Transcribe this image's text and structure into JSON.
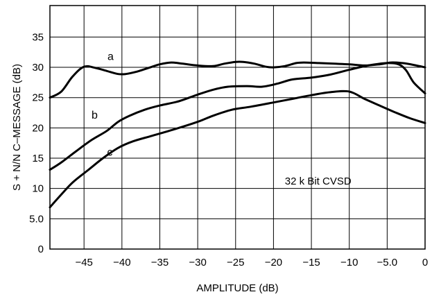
{
  "chart_data": {
    "type": "line",
    "title": "",
    "xlabel": "AMPLITUDE (dB)",
    "ylabel": "S + N/N C–MESSAGE (dB)",
    "xlim": [
      -49.5,
      0
    ],
    "ylim": [
      0,
      40
    ],
    "grid": true,
    "x_ticks": [
      {
        "value": -45,
        "label": "−45"
      },
      {
        "value": -40,
        "label": "−40"
      },
      {
        "value": -35,
        "label": "−35"
      },
      {
        "value": -30,
        "label": "−30"
      },
      {
        "value": -25,
        "label": "−25"
      },
      {
        "value": -20,
        "label": "−20"
      },
      {
        "value": -15,
        "label": "−15"
      },
      {
        "value": -10,
        "label": "−10"
      },
      {
        "value": -5,
        "label": "−5.0"
      },
      {
        "value": 0,
        "label": "0"
      }
    ],
    "y_ticks": [
      {
        "value": 0,
        "label": "0"
      },
      {
        "value": 5,
        "label": "5.0"
      },
      {
        "value": 10,
        "label": "10"
      },
      {
        "value": 15,
        "label": "15"
      },
      {
        "value": 20,
        "label": "20"
      },
      {
        "value": 25,
        "label": "25"
      },
      {
        "value": 30,
        "label": "30"
      },
      {
        "value": 35,
        "label": "35"
      }
    ],
    "annotation": {
      "text": "32 k Bit CVSD",
      "x": -18.5,
      "y": 11.2
    },
    "series": [
      {
        "name": "a",
        "label_at": {
          "x": -41.5,
          "y": 31.9
        },
        "points": [
          [
            -49.5,
            25.0
          ],
          [
            -48,
            26.0
          ],
          [
            -46.5,
            28.5
          ],
          [
            -45,
            30.1
          ],
          [
            -43.5,
            29.9
          ],
          [
            -42,
            29.4
          ],
          [
            -40.5,
            28.9
          ],
          [
            -39.5,
            28.9
          ],
          [
            -38,
            29.3
          ],
          [
            -36.5,
            29.9
          ],
          [
            -35,
            30.5
          ],
          [
            -33.5,
            30.8
          ],
          [
            -32,
            30.6
          ],
          [
            -30,
            30.3
          ],
          [
            -28,
            30.2
          ],
          [
            -26.5,
            30.6
          ],
          [
            -25,
            30.9
          ],
          [
            -24,
            30.9
          ],
          [
            -22.5,
            30.6
          ],
          [
            -21,
            30.1
          ],
          [
            -20,
            30.0
          ],
          [
            -18.5,
            30.2
          ],
          [
            -17,
            30.7
          ],
          [
            -16,
            30.8
          ],
          [
            -14,
            30.7
          ],
          [
            -12,
            30.6
          ],
          [
            -10,
            30.5
          ],
          [
            -8,
            30.3
          ],
          [
            -6,
            30.5
          ],
          [
            -4.5,
            30.8
          ],
          [
            -3,
            30.7
          ],
          [
            -1.5,
            30.4
          ],
          [
            0,
            30.0
          ]
        ]
      },
      {
        "name": "b",
        "label_at": {
          "x": -43.6,
          "y": 22.2
        },
        "points": [
          [
            -49.5,
            13.1
          ],
          [
            -48,
            14.3
          ],
          [
            -46,
            16.2
          ],
          [
            -44,
            18.0
          ],
          [
            -42,
            19.5
          ],
          [
            -40.5,
            21.0
          ],
          [
            -39,
            22.0
          ],
          [
            -37,
            23.0
          ],
          [
            -35,
            23.7
          ],
          [
            -32.5,
            24.4
          ],
          [
            -30,
            25.5
          ],
          [
            -28,
            26.3
          ],
          [
            -26,
            26.8
          ],
          [
            -23.5,
            26.9
          ],
          [
            -21.5,
            26.8
          ],
          [
            -19.5,
            27.3
          ],
          [
            -17.5,
            28.0
          ],
          [
            -15,
            28.3
          ],
          [
            -12.5,
            28.8
          ],
          [
            -10,
            29.6
          ],
          [
            -7.5,
            30.3
          ],
          [
            -5,
            30.7
          ],
          [
            -3.5,
            30.5
          ],
          [
            -2.5,
            29.5
          ],
          [
            -1.5,
            27.5
          ],
          [
            0,
            25.7
          ]
        ]
      },
      {
        "name": "c",
        "label_at": {
          "x": -41.6,
          "y": 16.1
        },
        "points": [
          [
            -49.5,
            6.9
          ],
          [
            -48,
            9.0
          ],
          [
            -46.5,
            11.0
          ],
          [
            -44.5,
            13.0
          ],
          [
            -42.5,
            15.0
          ],
          [
            -40.5,
            16.7
          ],
          [
            -38.5,
            17.8
          ],
          [
            -36,
            18.7
          ],
          [
            -33,
            19.8
          ],
          [
            -30,
            21.0
          ],
          [
            -28,
            22.0
          ],
          [
            -25.5,
            23.0
          ],
          [
            -23,
            23.5
          ],
          [
            -20,
            24.2
          ],
          [
            -17.5,
            24.8
          ],
          [
            -15,
            25.4
          ],
          [
            -12.5,
            25.9
          ],
          [
            -10,
            26.0
          ],
          [
            -8,
            24.8
          ],
          [
            -6,
            23.7
          ],
          [
            -4,
            22.6
          ],
          [
            -2,
            21.6
          ],
          [
            0,
            20.8
          ]
        ]
      }
    ]
  }
}
